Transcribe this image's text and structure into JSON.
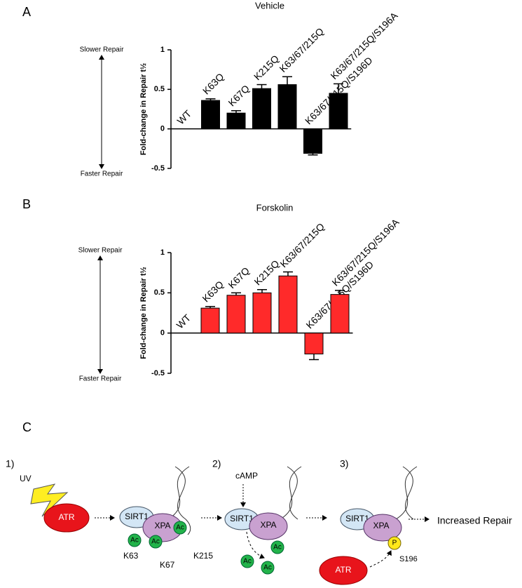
{
  "chart_data": [
    {
      "type": "bar",
      "panel": "A",
      "title": "Vehicle",
      "y_label": "Fold-change in Repair t½",
      "annotations": [
        "Slower Repair",
        "Faster Repair"
      ],
      "categories": [
        "WT",
        "K63Q",
        "K67Q",
        "K215Q",
        "K63/67/215Q",
        "K63/67/215Q/S196D",
        "K63/67/215Q/S196A"
      ],
      "values": [
        0,
        0.36,
        0.2,
        0.51,
        0.56,
        -0.31,
        0.45
      ],
      "errors": [
        0,
        0.02,
        0.03,
        0.05,
        0.1,
        0.02,
        0.12
      ],
      "color": "#000000",
      "ylim": [
        -0.5,
        1
      ],
      "yticks": [
        -0.5,
        0,
        0.5,
        1
      ]
    },
    {
      "type": "bar",
      "panel": "B",
      "title": "Forskolin",
      "y_label": "Fold-change in Repair t½",
      "annotations": [
        "Slower Repair",
        "Faster Repair"
      ],
      "categories": [
        "WT",
        "K63Q",
        "K67Q",
        "K215Q",
        "K63/67/215Q",
        "K63/67/215Q/S196D",
        "K63/67/215Q/S196A"
      ],
      "values": [
        0,
        0.31,
        0.47,
        0.5,
        0.71,
        -0.26,
        0.48
      ],
      "errors": [
        0,
        0.02,
        0.03,
        0.04,
        0.05,
        0.07,
        0.05
      ],
      "color": "#ff2a2a",
      "ylim": [
        -0.5,
        1
      ],
      "yticks": [
        -0.5,
        0,
        0.5,
        1
      ]
    }
  ],
  "diagram": {
    "panel": "C",
    "steps": [
      "1)",
      "2)",
      "3)"
    ],
    "uv": "UV",
    "atr": "ATR",
    "sirt1": "SIRT1",
    "xpa": "XPA",
    "ac": "Ac",
    "sites": [
      "K63",
      "K67",
      "K215"
    ],
    "camp": "cAMP",
    "p": "P",
    "s196": "S196",
    "result": "Increased Repair"
  }
}
